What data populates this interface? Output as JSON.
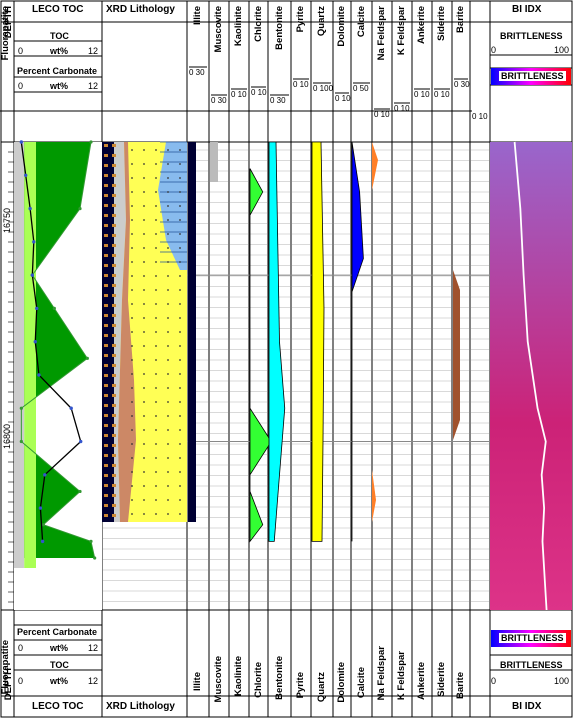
{
  "tracks": {
    "depth": {
      "label": "DEPTH",
      "ticks": [
        "16750",
        "16800"
      ]
    },
    "leco": {
      "title": "LECO TOC",
      "toc": {
        "label": "TOC",
        "min": "0",
        "unit": "wt%",
        "max": "12"
      },
      "carbonate": {
        "label": "Percent Carbonate",
        "min": "0",
        "unit": "wt%",
        "max": "12"
      }
    },
    "xrd": {
      "title": "XRD Lithology"
    },
    "minerals": [
      {
        "name": "Illite",
        "scale": "0 30"
      },
      {
        "name": "Muscovite",
        "scale": "0 30"
      },
      {
        "name": "Kaolinite",
        "scale": "0 10"
      },
      {
        "name": "Chlorite",
        "scale": "0 10"
      },
      {
        "name": "Bentonite",
        "scale": "0 30"
      },
      {
        "name": "Pyrite",
        "scale": "0 10"
      },
      {
        "name": "Quartz",
        "scale": "0 100"
      },
      {
        "name": "Dolomite",
        "scale": "0 10"
      },
      {
        "name": "Calcite",
        "scale": "0 50"
      },
      {
        "name": "Na Feldspar",
        "scale": "0 10"
      },
      {
        "name": "K Feldspar",
        "scale": "0 10"
      },
      {
        "name": "Ankerite",
        "scale": "0 10"
      },
      {
        "name": "Siderite",
        "scale": "0 10"
      },
      {
        "name": "Barite",
        "scale": "0 30"
      },
      {
        "name": "Fluorapatite",
        "scale": "0 10"
      }
    ],
    "bi": {
      "title": "BI IDX",
      "label": "BRITTLENESS",
      "min": "0",
      "max": "100",
      "colorbar_label": "BRITTLENESS"
    }
  },
  "colors": {
    "toc_fill_light": "#aaff55",
    "toc_fill_dark": "#009900",
    "quartz": "#ffff00",
    "calcite": "#0000ff",
    "chlorite": "#33ff33",
    "bentonite": "#00ffff",
    "barite": "#a0522d",
    "na_feldspar": "#ff7f27",
    "muscovite": "#bbbbbb",
    "illite": "#000033",
    "bi_low": "#0000ff",
    "bi_high": "#ff0000"
  },
  "chart_data": {
    "type": "well-log",
    "depth_range": [
      16710,
      16838
    ],
    "depth_ticks": [
      16750,
      16800
    ],
    "toc": {
      "name": "TOC",
      "unit": "wt%",
      "range": [
        0,
        12
      ],
      "depth": [
        16710,
        16720,
        16730,
        16740,
        16750,
        16760,
        16770,
        16780,
        16790,
        16800,
        16810,
        16820,
        16830
      ],
      "values": [
        1.0,
        1.6,
        2.2,
        2.7,
        2.5,
        3.1,
        2.9,
        3.4,
        7.8,
        9.1,
        4.2,
        3.6,
        3.9
      ]
    },
    "carbonate": {
      "name": "Percent Carbonate",
      "unit": "wt%",
      "range": [
        0,
        12
      ],
      "depth": [
        16710,
        16730,
        16750,
        16760,
        16775,
        16790,
        16800,
        16815,
        16825,
        16830,
        16835
      ],
      "values": [
        10.5,
        9.0,
        2.5,
        5.5,
        10.0,
        1.0,
        1.0,
        9.0,
        4.0,
        10.5,
        11.0
      ]
    },
    "brittleness": {
      "name": "BRITTLENESS",
      "range": [
        0,
        100
      ],
      "depth": [
        16710,
        16730,
        16750,
        16770,
        16790,
        16800,
        16810,
        16820,
        16830,
        16838
      ],
      "values": [
        30,
        37,
        41,
        46,
        58,
        68,
        63,
        66,
        64,
        69
      ]
    },
    "minerals": {
      "quartz": {
        "range": [
          0,
          100
        ],
        "depth": [
          16710,
          16760,
          16800,
          16830
        ],
        "values": [
          18,
          24,
          22,
          20
        ]
      },
      "calcite": {
        "range": [
          0,
          50
        ],
        "depth": [
          16710,
          16725,
          16745,
          16755,
          16760,
          16830
        ],
        "values": [
          0,
          8,
          12,
          0,
          0,
          0
        ]
      },
      "chlorite": {
        "range": [
          0,
          10
        ],
        "depth": [
          16718,
          16725,
          16732,
          16790,
          16800,
          16810,
          16815,
          16825,
          16830
        ],
        "values": [
          0,
          3,
          0,
          0,
          5,
          0,
          0,
          3,
          0
        ]
      },
      "bentonite": {
        "range": [
          0,
          30
        ],
        "depth": [
          16710,
          16740,
          16770,
          16790,
          16830
        ],
        "values": [
          4,
          5,
          6,
          9,
          3
        ]
      }
    }
  }
}
